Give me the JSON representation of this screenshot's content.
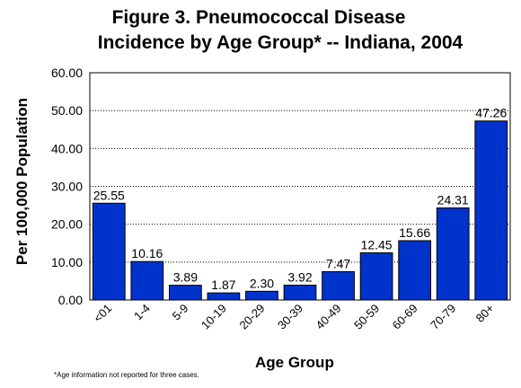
{
  "chart_data": {
    "type": "bar",
    "title_line1": "Figure 3. Pneumococcal Disease",
    "title_line2": "Incidence by Age Group* -- Indiana, 2004",
    "xlabel": "Age Group",
    "ylabel": "Per 100,000 Population",
    "footnote": "*Age information not reported for three cases.",
    "categories": [
      "<01",
      "1-4",
      "5-9",
      "10-19",
      "20-29",
      "30-39",
      "40-49",
      "50-59",
      "60-69",
      "70-79",
      "80+"
    ],
    "values": [
      25.55,
      10.16,
      3.89,
      1.87,
      2.3,
      3.92,
      7.47,
      12.45,
      15.66,
      24.31,
      47.26
    ],
    "value_labels": [
      "25.55",
      "10.16",
      "3.89",
      "1.87",
      "2.30",
      "3.92",
      "7.47",
      "12.45",
      "15.66",
      "24.31",
      "47.26"
    ],
    "yticks": [
      "0.00",
      "10.00",
      "20.00",
      "30.00",
      "40.00",
      "50.00",
      "60.00"
    ],
    "ylim": [
      0,
      60
    ],
    "grid": "dashed horizontal",
    "bar_color": "#0033cc"
  }
}
